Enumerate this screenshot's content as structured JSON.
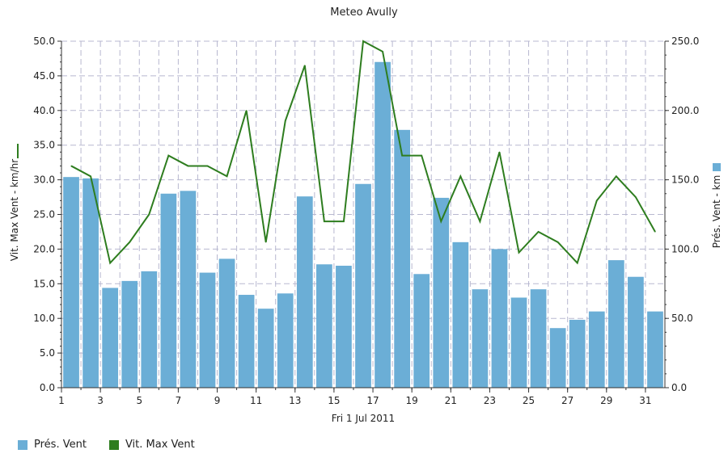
{
  "chart_data": {
    "type": "bar+line",
    "title": "Meteo  Avully",
    "xlabel": "Fri 1 Jul 2011",
    "ylabel_left": "Vit. Max Vent - km/hr",
    "ylabel_right": "Prés. Vent - km",
    "x": [
      1,
      2,
      3,
      4,
      5,
      6,
      7,
      8,
      9,
      10,
      11,
      12,
      13,
      14,
      15,
      16,
      17,
      18,
      19,
      20,
      21,
      22,
      23,
      24,
      25,
      26,
      27,
      28,
      29,
      30,
      31
    ],
    "x_ticks": [
      "1",
      "3",
      "5",
      "7",
      "9",
      "11",
      "13",
      "15",
      "17",
      "19",
      "21",
      "23",
      "25",
      "27",
      "29",
      "31"
    ],
    "xlim": [
      1,
      32
    ],
    "ylim_left": [
      0,
      50
    ],
    "ylim_right": [
      0,
      250
    ],
    "y_ticks_left": [
      "0.0",
      "5.0",
      "10.0",
      "15.0",
      "20.0",
      "25.0",
      "30.0",
      "35.0",
      "40.0",
      "45.0",
      "50.0"
    ],
    "y_ticks_right": [
      "0.0",
      "50.0",
      "100.0",
      "150.0",
      "200.0",
      "250.0"
    ],
    "grid": true,
    "legend_position": "bottom-left",
    "series": [
      {
        "name": "Prés. Vent",
        "type": "bar",
        "axis": "right",
        "color": "#6baed6",
        "values": [
          152,
          151,
          72,
          77,
          84,
          140,
          142,
          83,
          93,
          67,
          57,
          68,
          138,
          89,
          88,
          147,
          235,
          186,
          82,
          137,
          105,
          71,
          100,
          65,
          71,
          43,
          49,
          55,
          92,
          80,
          55
        ]
      },
      {
        "name": "Vit. Max Vent",
        "type": "line",
        "axis": "left",
        "color": "#2e7d1f",
        "values": [
          32.0,
          30.5,
          18.0,
          21.0,
          25.0,
          33.5,
          32.0,
          32.0,
          30.5,
          40.0,
          21.0,
          38.5,
          46.5,
          24.0,
          24.0,
          50.0,
          48.5,
          33.5,
          33.5,
          24.0,
          30.5,
          24.0,
          34.0,
          19.5,
          22.5,
          21.0,
          18.0,
          27.0,
          30.5,
          27.5,
          22.5
        ]
      }
    ]
  }
}
